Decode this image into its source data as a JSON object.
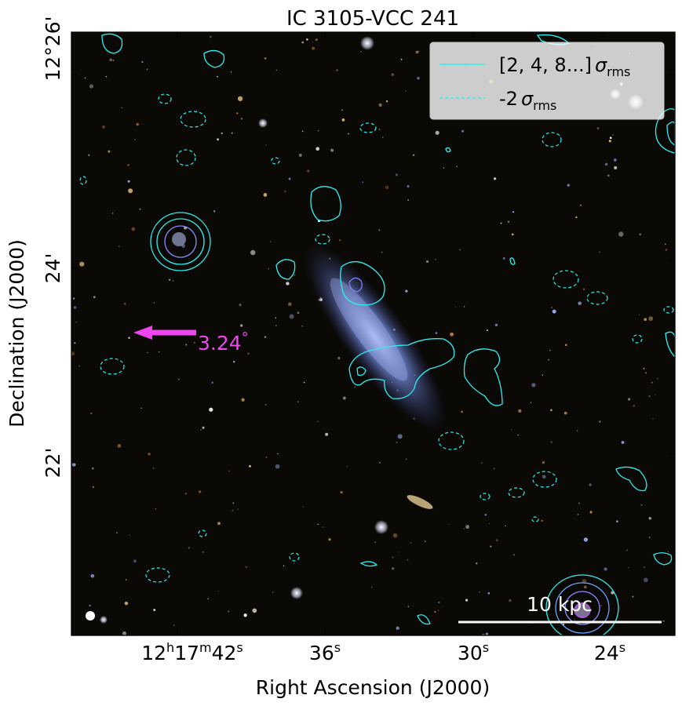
{
  "title": "IC 3105-VCC 241",
  "axes": {
    "xlabel": "Right Ascension (J2000)",
    "ylabel": "Declination (J2000)",
    "xticks": [
      {
        "h": "12",
        "m": "17",
        "s": "42",
        "full": true
      },
      {
        "s": "36",
        "full": false
      },
      {
        "s": "30",
        "full": false
      },
      {
        "s": "24",
        "full": false
      }
    ],
    "yticks": [
      "12°26'",
      "24'",
      "22'"
    ]
  },
  "legend": {
    "entry1_prefix": "[2, 4, 8...]",
    "entry2_prefix": "-2",
    "sigma": "σ",
    "sub": "rms"
  },
  "annotations": {
    "pa_label": "3.24",
    "pa_unit": "°",
    "scalebar_label": "10 kpc"
  },
  "colors": {
    "contour": "#2cf0f0",
    "arrow": "#ef45ef",
    "background": "#0b0906"
  }
}
